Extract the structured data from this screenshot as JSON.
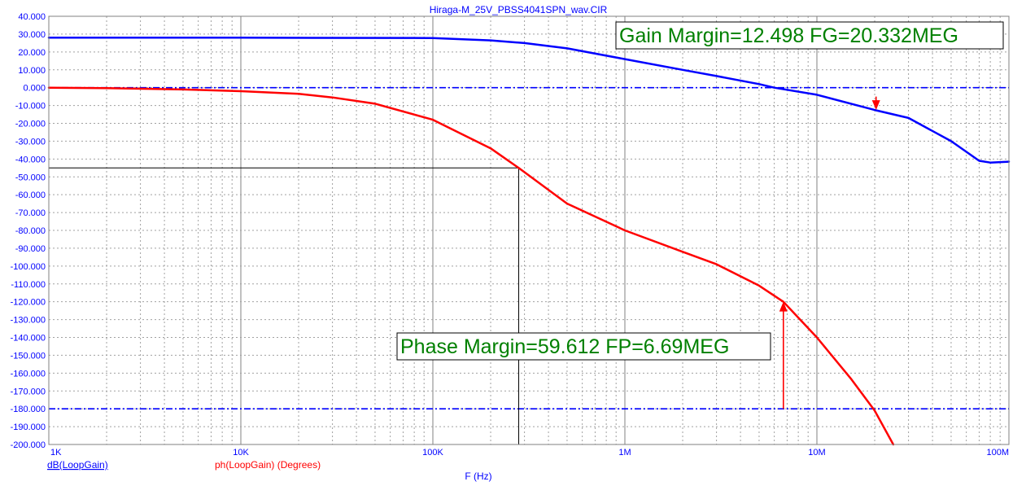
{
  "chart_data": {
    "type": "line",
    "title": "Hiraga-M_25V_PBSS4041SPN_wav.CIR",
    "xlabel": "F (Hz)",
    "x_scale": "log",
    "xlim": [
      1000,
      100000000
    ],
    "x_ticks": [
      {
        "value": 1000,
        "label": "1K"
      },
      {
        "value": 10000,
        "label": "10K"
      },
      {
        "value": 100000,
        "label": "100K"
      },
      {
        "value": 1000000,
        "label": "1M"
      },
      {
        "value": 10000000,
        "label": "10M"
      },
      {
        "value": 100000000,
        "label": "100M"
      }
    ],
    "ylim": [
      -200,
      40
    ],
    "y_ticks": [
      "40.000",
      "30.000",
      "20.000",
      "10.000",
      "0.000",
      "-10.000",
      "-20.000",
      "-30.000",
      "-40.000",
      "-50.000",
      "-60.000",
      "-70.000",
      "-80.000",
      "-90.000",
      "-100.000",
      "-110.000",
      "-120.000",
      "-130.000",
      "-140.000",
      "-150.000",
      "-160.000",
      "-170.000",
      "-180.000",
      "-190.000",
      "-200.000"
    ],
    "grid": true,
    "series": [
      {
        "name": "dB(LoopGain)",
        "color": "#0000ff",
        "x": [
          1000,
          10000,
          100000,
          200000,
          300000,
          500000,
          1000000,
          2000000,
          3000000,
          5000000,
          6000000,
          10000000,
          20000000,
          30000000,
          50000000,
          70000000,
          80000000,
          100000000
        ],
        "y": [
          28,
          28,
          27.8,
          26.5,
          25,
          22,
          16,
          10,
          6.5,
          2,
          0,
          -4,
          -12.5,
          -17,
          -30,
          -41,
          -42,
          -41.5
        ]
      },
      {
        "name": "ph(LoopGain) (Degrees)",
        "color": "#ff0000",
        "x": [
          1000,
          2000,
          5000,
          10000,
          20000,
          30000,
          50000,
          100000,
          200000,
          280000,
          500000,
          1000000,
          2000000,
          3000000,
          5000000,
          6690000,
          10000000,
          15000000,
          20000000,
          25000000
        ],
        "y": [
          0,
          -0.3,
          -1,
          -2,
          -3.5,
          -5.5,
          -9,
          -18,
          -34,
          -45,
          -65,
          -80,
          -92,
          -99,
          -111,
          -120,
          -140,
          -163,
          -181,
          -200
        ]
      }
    ],
    "reference_lines": [
      {
        "y": 0,
        "color": "#0000ff",
        "style": "dash-dot"
      },
      {
        "y": -180,
        "color": "#0000ff",
        "style": "dash-dot"
      }
    ],
    "crosshair": {
      "x": 280000,
      "y": -45,
      "color": "#000000"
    },
    "annotations": [
      {
        "text": "Gain Margin=12.498 FG=20.332MEG",
        "color": "#008000",
        "arrow_x": 20332000,
        "arrow_from": -5,
        "arrow_to": -12.5
      },
      {
        "text": "Phase Margin=59.612 FP=6.69MEG",
        "color": "#008000",
        "arrow_x": 6690000,
        "arrow_from": -180,
        "arrow_to": -120
      }
    ]
  }
}
